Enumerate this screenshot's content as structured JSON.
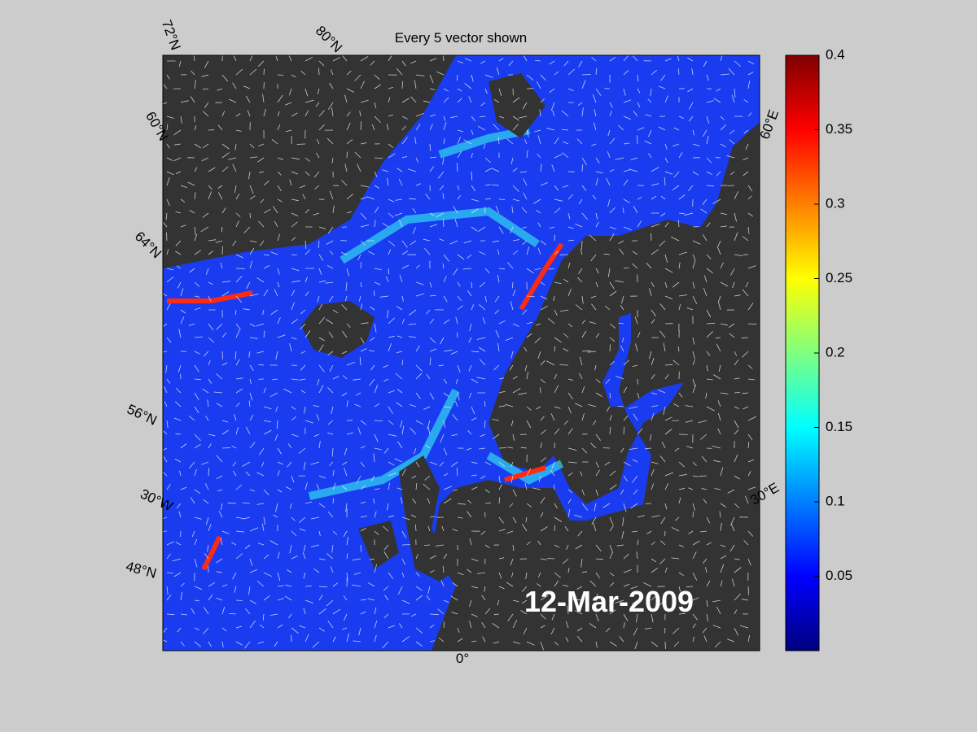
{
  "title": "Every 5 vector shown",
  "date_label": "12-Mar-2009",
  "map_labels": [
    "72°N",
    "80°N",
    "60°N",
    "64°N",
    "56°N",
    "30°W",
    "48°N",
    "0°",
    "60°E",
    "30°E"
  ],
  "colorbar": {
    "lim": [
      0,
      0.4
    ],
    "ticks": [
      0.05,
      0.1,
      0.15,
      0.2,
      0.25,
      0.3,
      0.35,
      0.4
    ]
  }
}
